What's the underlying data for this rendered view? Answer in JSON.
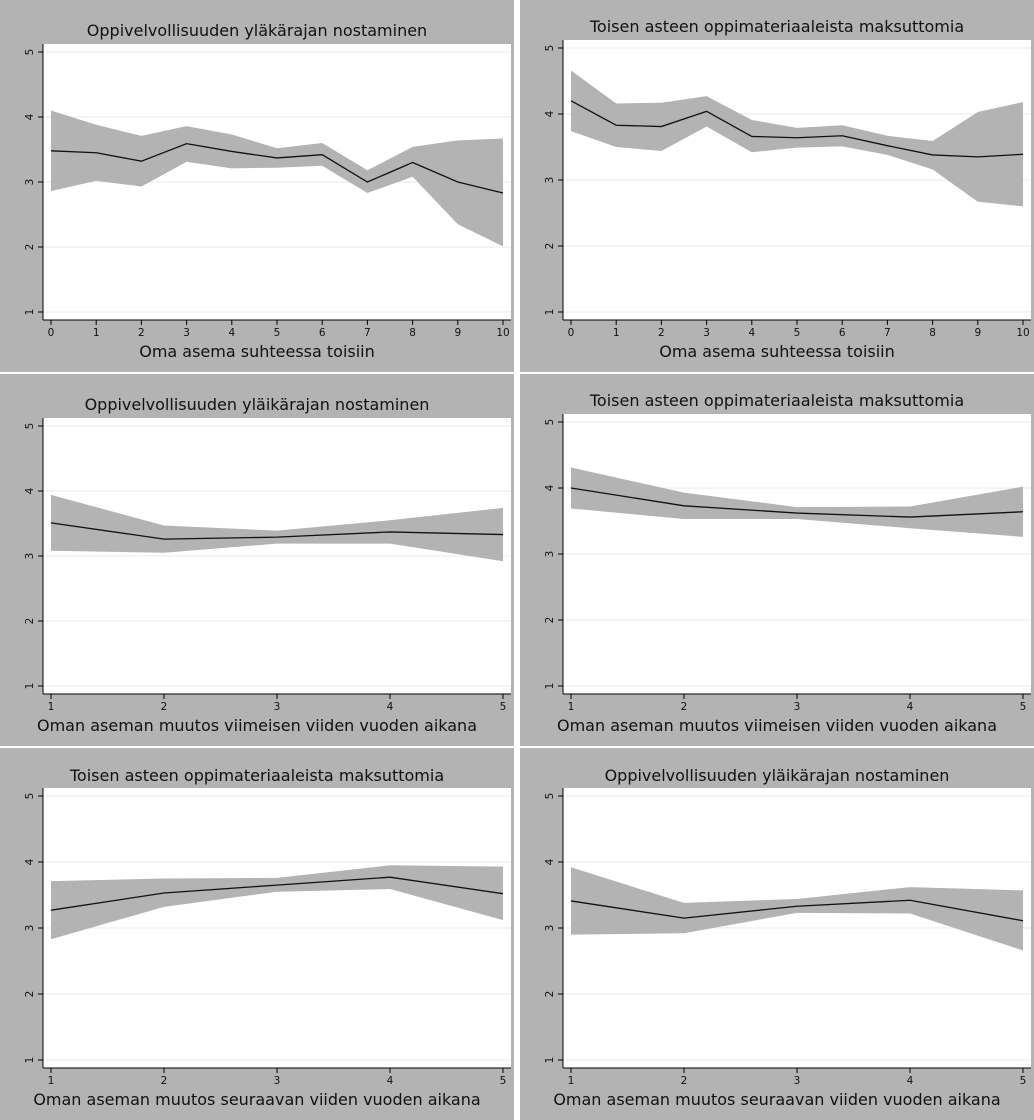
{
  "chart_data": [
    {
      "type": "line",
      "title": "Oppivelvollisuuden yläkärajan nostaminen",
      "xlabel": "Oma asema suhteessa toisiin",
      "ylabel": "",
      "xlim": [
        0,
        10
      ],
      "ylim": [
        1,
        5
      ],
      "xticks": [
        0,
        1,
        2,
        3,
        4,
        5,
        6,
        7,
        8,
        9,
        10
      ],
      "yticks": [
        1,
        2,
        3,
        4,
        5
      ],
      "grid": true,
      "series": [
        {
          "x": [
            0,
            1,
            2,
            3,
            4,
            5,
            6,
            7,
            8,
            9,
            10
          ],
          "values": [
            3.48,
            3.45,
            3.32,
            3.59,
            3.47,
            3.37,
            3.42,
            3.0,
            3.3,
            3.0,
            2.83
          ],
          "lower": [
            2.86,
            3.02,
            2.93,
            3.31,
            3.21,
            3.22,
            3.25,
            2.83,
            3.08,
            2.35,
            2.01
          ],
          "upper": [
            4.1,
            3.88,
            3.71,
            3.86,
            3.73,
            3.52,
            3.6,
            3.18,
            3.54,
            3.64,
            3.67
          ]
        }
      ]
    },
    {
      "type": "line",
      "title": "Toisen asteen oppimateriaaleista maksuttomia",
      "xlabel": "Oma asema suhteessa toisiin",
      "ylabel": "",
      "xlim": [
        0,
        10
      ],
      "ylim": [
        1,
        5
      ],
      "xticks": [
        0,
        1,
        2,
        3,
        4,
        5,
        6,
        7,
        8,
        9,
        10
      ],
      "yticks": [
        1,
        2,
        3,
        4,
        5
      ],
      "grid": true,
      "series": [
        {
          "x": [
            0,
            1,
            2,
            3,
            4,
            5,
            6,
            7,
            8,
            9,
            10
          ],
          "values": [
            4.2,
            3.83,
            3.81,
            4.04,
            3.66,
            3.64,
            3.67,
            3.52,
            3.38,
            3.35,
            3.39
          ],
          "lower": [
            3.74,
            3.5,
            3.44,
            3.81,
            3.42,
            3.49,
            3.51,
            3.38,
            3.16,
            2.67,
            2.6
          ],
          "upper": [
            4.66,
            4.16,
            4.17,
            4.27,
            3.91,
            3.79,
            3.83,
            3.67,
            3.59,
            4.03,
            4.18
          ]
        }
      ]
    },
    {
      "type": "line",
      "title": "Oppivelvollisuuden yläikärajan nostaminen",
      "xlabel": "Oman aseman muutos viimeisen viiden vuoden aikana",
      "ylabel": "",
      "xlim": [
        1,
        5
      ],
      "ylim": [
        1,
        5
      ],
      "xticks": [
        1,
        2,
        3,
        4,
        5
      ],
      "yticks": [
        1,
        2,
        3,
        4,
        5
      ],
      "grid": true,
      "series": [
        {
          "x": [
            1,
            2,
            3,
            4,
            5
          ],
          "values": [
            3.51,
            3.26,
            3.29,
            3.37,
            3.33
          ],
          "lower": [
            3.08,
            3.05,
            3.19,
            3.19,
            2.92
          ],
          "upper": [
            3.94,
            3.47,
            3.39,
            3.55,
            3.74
          ]
        }
      ]
    },
    {
      "type": "line",
      "title": "Toisen asteen oppimateriaaleista maksuttomia",
      "xlabel": "Oman aseman muutos viimeisen viiden vuoden aikana",
      "ylabel": "",
      "xlim": [
        1,
        5
      ],
      "ylim": [
        1,
        5
      ],
      "xticks": [
        1,
        2,
        3,
        4,
        5
      ],
      "yticks": [
        1,
        2,
        3,
        4,
        5
      ],
      "grid": true,
      "series": [
        {
          "x": [
            1,
            2,
            3,
            4,
            5
          ],
          "values": [
            4.0,
            3.73,
            3.62,
            3.56,
            3.64
          ],
          "lower": [
            3.69,
            3.53,
            3.53,
            3.39,
            3.26
          ],
          "upper": [
            4.31,
            3.93,
            3.71,
            3.72,
            4.02
          ]
        }
      ]
    },
    {
      "type": "line",
      "title": "Toisen asteen oppimateriaaleista maksuttomia",
      "xlabel": "Oman aseman muutos seuraavan viiden vuoden aikana",
      "ylabel": "",
      "xlim": [
        1,
        5
      ],
      "ylim": [
        1,
        5
      ],
      "xticks": [
        1,
        2,
        3,
        4,
        5
      ],
      "yticks": [
        1,
        2,
        3,
        4,
        5
      ],
      "grid": true,
      "series": [
        {
          "x": [
            1,
            2,
            3,
            4,
            5
          ],
          "values": [
            3.27,
            3.53,
            3.65,
            3.77,
            3.52
          ],
          "lower": [
            2.83,
            3.32,
            3.55,
            3.59,
            3.12
          ],
          "upper": [
            3.71,
            3.75,
            3.76,
            3.95,
            3.93
          ]
        }
      ]
    },
    {
      "type": "line",
      "title": "Oppivelvollisuuden yläikärajan nostaminen",
      "xlabel": "Oman aseman muutos seuraavan viiden vuoden aikana",
      "ylabel": "",
      "xlim": [
        1,
        5
      ],
      "ylim": [
        1,
        5
      ],
      "xticks": [
        1,
        2,
        3,
        4,
        5
      ],
      "yticks": [
        1,
        2,
        3,
        4,
        5
      ],
      "grid": true,
      "series": [
        {
          "x": [
            1,
            2,
            3,
            4,
            5
          ],
          "values": [
            3.41,
            3.15,
            3.33,
            3.42,
            3.11
          ],
          "lower": [
            2.9,
            2.92,
            3.23,
            3.22,
            2.66
          ],
          "upper": [
            3.92,
            3.38,
            3.44,
            3.62,
            3.57
          ]
        }
      ]
    }
  ],
  "colors": {
    "background": "#b3b3b3",
    "plot_area": "#ffffff",
    "band": "#b3b3b3",
    "line": "#111111",
    "gridline": "#eaeaea"
  }
}
